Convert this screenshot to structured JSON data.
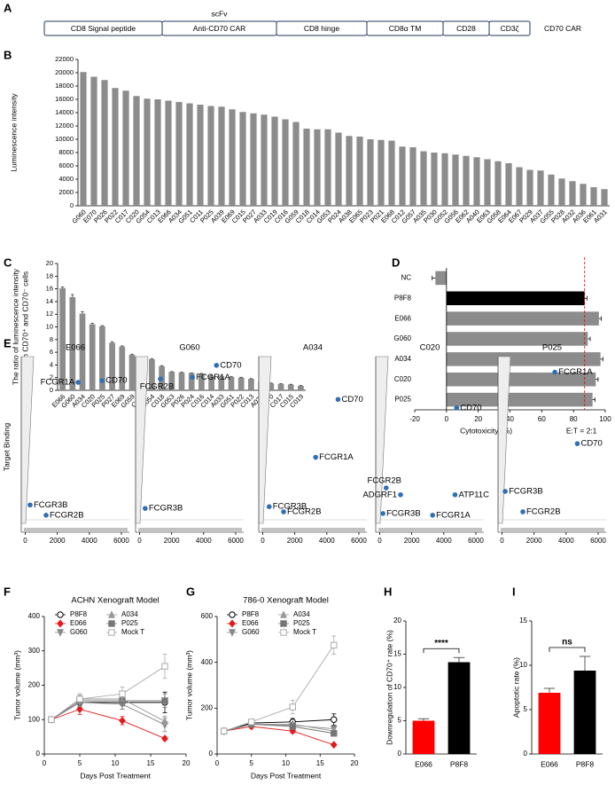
{
  "construct": {
    "panel": "A",
    "name": "CD70 CAR",
    "domains": [
      {
        "label": "CD8 Signal peptide"
      },
      {
        "label": "Anti-CD70 CAR",
        "group": "scFv"
      },
      {
        "label": "CD8 hinge"
      },
      {
        "label": "CD8α TM"
      },
      {
        "label": "CD28"
      },
      {
        "label": "CD3ζ"
      }
    ]
  },
  "chart_data": [
    {
      "panel": "B",
      "type": "bar",
      "ylabel": "Luminescence intensity",
      "color": "#8c8c8c",
      "categories": [
        "G060",
        "E070",
        "P026",
        "P022",
        "C017",
        "C020",
        "G054",
        "C013",
        "E066",
        "A034",
        "G051",
        "C011",
        "P025",
        "A039",
        "E069",
        "C015",
        "P027",
        "A033",
        "C019",
        "C016",
        "G059",
        "C018",
        "C014",
        "G053",
        "P024",
        "A038",
        "E065",
        "P023",
        "P021",
        "E068",
        "C012",
        "G057",
        "A035",
        "P030",
        "G052",
        "G056",
        "E062",
        "A040",
        "E063",
        "G058",
        "E064",
        "E067",
        "P029",
        "A037",
        "G055",
        "P028",
        "A032",
        "A036",
        "E061",
        "A031"
      ],
      "values": [
        20100,
        19400,
        18900,
        17700,
        17300,
        16500,
        16100,
        16000,
        15800,
        15600,
        15400,
        15200,
        15000,
        14900,
        14500,
        14100,
        13900,
        13700,
        13400,
        13000,
        12600,
        11600,
        11500,
        11500,
        11000,
        10500,
        10400,
        10000,
        9900,
        9800,
        8900,
        8800,
        8200,
        8000,
        7900,
        7700,
        7500,
        7300,
        7000,
        6700,
        6400,
        5800,
        5400,
        5300,
        4700,
        4100,
        3700,
        3300,
        2800,
        2500
      ],
      "ylim": [
        0,
        22000
      ],
      "yticks": [
        0,
        2000,
        4000,
        6000,
        8000,
        10000,
        12000,
        14000,
        16000,
        18000,
        20000,
        22000
      ]
    },
    {
      "panel": "C",
      "type": "bar",
      "ylabel": [
        "The ratio of luminescence intensity",
        "between CD70⁺ and CD70⁻ cells"
      ],
      "color": "#8c8c8c",
      "categories": [
        "E066",
        "G060",
        "A034",
        "C020",
        "P025",
        "P027",
        "E069",
        "G059",
        "C011",
        "G054",
        "C018",
        "G053",
        "P026",
        "P024",
        "C016",
        "C014",
        "A033",
        "G051",
        "P022",
        "C013",
        "A039",
        "E070",
        "C017",
        "C015",
        "C019"
      ],
      "values": [
        16.1,
        14.7,
        12.1,
        10.4,
        10.1,
        7.5,
        6.9,
        5.6,
        5.0,
        4.9,
        3.8,
        2.9,
        2.8,
        2.7,
        2.6,
        2.3,
        2.2,
        2.1,
        2.0,
        1.8,
        1.4,
        1.1,
        1.0,
        0.9,
        0.7
      ],
      "errors": [
        0.2,
        0.4,
        0.3,
        0.15,
        0.1,
        0.15,
        0.1,
        0.1,
        0.1,
        0.1,
        0.1,
        0.05,
        0.05,
        0.05,
        0.05,
        0.05,
        0.05,
        0.05,
        0.05,
        0.05,
        0.05,
        0.05,
        0.05,
        0.05,
        0.05
      ],
      "ylim": [
        0,
        20
      ],
      "yticks": [
        0,
        2,
        4,
        6,
        8,
        10,
        12,
        14,
        16,
        18,
        20
      ]
    },
    {
      "panel": "D",
      "type": "hbar",
      "xlabel": "Cytotoxicity (%)",
      "note": "E:T = 2:1",
      "categories": [
        "NC",
        "P8F8",
        "E066",
        "G060",
        "A034",
        "C020",
        "P025"
      ],
      "values": [
        -7,
        87,
        96,
        89,
        97,
        94,
        92
      ],
      "errors": [
        2,
        1.5,
        1.5,
        1.5,
        1.5,
        1.5,
        1.5
      ],
      "colors": [
        "#8c8c8c",
        "#000000",
        "#8c8c8c",
        "#8c8c8c",
        "#8c8c8c",
        "#8c8c8c",
        "#8c8c8c"
      ],
      "ref_line": 87,
      "ref_color": "#e00000",
      "xlim": [
        -20,
        100
      ],
      "xticks": [
        -20,
        0,
        20,
        40,
        60,
        80,
        100
      ]
    },
    {
      "panel": "E",
      "type": "scatter_grid",
      "ylabel": "Target Binding",
      "color": "#2f6fb5",
      "xlim": [
        -250,
        6500
      ],
      "xticks": [
        0,
        2000,
        4000,
        6000
      ],
      "ylim": [
        0,
        100
      ],
      "subplots": [
        {
          "title": "E066",
          "labels": [
            "FCGR1A",
            "CD70",
            "FCGR3B",
            "FCGR2B"
          ],
          "x": [
            3300,
            4800,
            300,
            1300
          ],
          "y": [
            88,
            89,
            16,
            10
          ]
        },
        {
          "title": "G060",
          "labels": [
            "CD70",
            "FCGR1A",
            "FCGR2B",
            "FCGR3B"
          ],
          "x": [
            4800,
            3300,
            1300,
            350
          ],
          "y": [
            98,
            91,
            90,
            14
          ]
        },
        {
          "title": "A034",
          "labels": [
            "CD70",
            "FCGR1A",
            "FCGR3B",
            "FCGR2B"
          ],
          "x": [
            4700,
            3300,
            400,
            1300
          ],
          "y": [
            78,
            44,
            15,
            12
          ]
        },
        {
          "title": "C020",
          "labels": [
            "CD70",
            "FCGR2B",
            "ADGRF1",
            "ATP11C",
            "FCGR3B",
            "FCGR1A"
          ],
          "x": [
            4800,
            400,
            1300,
            4700,
            200,
            3300
          ],
          "y": [
            73,
            26,
            22,
            22,
            11,
            10
          ]
        },
        {
          "title": "P025",
          "labels": [
            "FCGR1A",
            "CD70",
            "FCGR3B",
            "FCGR2B"
          ],
          "x": [
            3300,
            4700,
            200,
            1300
          ],
          "y": [
            94,
            52,
            24,
            12
          ]
        }
      ]
    },
    {
      "panel": "F",
      "type": "line",
      "title": "ACHN Xenograft Model",
      "xlabel": "Days Post Treatment",
      "ylabel": "Tumor volume (mm³)",
      "x": [
        1,
        5,
        11,
        17
      ],
      "xlim": [
        0,
        20
      ],
      "xticks": [
        0,
        5,
        10,
        15,
        20
      ],
      "ylim": [
        0,
        400
      ],
      "yticks": [
        0,
        100,
        200,
        300,
        400
      ],
      "series": [
        {
          "name": "P8F8",
          "color": "#000000",
          "marker": "circle-open",
          "values": [
            100,
            150,
            150,
            150
          ],
          "errors": [
            5,
            15,
            20,
            30
          ]
        },
        {
          "name": "E066",
          "color": "#e41a1c",
          "marker": "diamond",
          "values": [
            100,
            130,
            97,
            45
          ],
          "errors": [
            5,
            15,
            12,
            5
          ]
        },
        {
          "name": "G060",
          "color": "#888888",
          "marker": "triangle-down",
          "values": [
            100,
            150,
            145,
            85
          ],
          "errors": [
            5,
            12,
            15,
            20
          ]
        },
        {
          "name": "A034",
          "color": "#999999",
          "marker": "triangle",
          "values": [
            100,
            160,
            160,
            95
          ],
          "errors": [
            5,
            15,
            15,
            15
          ]
        },
        {
          "name": "P025",
          "color": "#777777",
          "marker": "square",
          "values": [
            100,
            155,
            155,
            155
          ],
          "errors": [
            5,
            15,
            15,
            20
          ]
        },
        {
          "name": "Mock T",
          "color": "#aaaaaa",
          "marker": "square-open",
          "values": [
            100,
            160,
            175,
            255
          ],
          "errors": [
            5,
            15,
            20,
            35
          ]
        }
      ]
    },
    {
      "panel": "G",
      "type": "line",
      "title": "786-0 Xenograft Model",
      "xlabel": "Days Post Treatment",
      "ylabel": "Tumor volume (mm³)",
      "x": [
        1,
        5,
        11,
        17
      ],
      "xlim": [
        0,
        20
      ],
      "xticks": [
        0,
        5,
        10,
        15,
        20
      ],
      "ylim": [
        0,
        600
      ],
      "yticks": [
        0,
        200,
        400,
        600
      ],
      "series": [
        {
          "name": "P8F8",
          "color": "#000000",
          "marker": "circle-open",
          "values": [
            100,
            135,
            140,
            150
          ],
          "errors": [
            5,
            10,
            15,
            25
          ]
        },
        {
          "name": "E066",
          "color": "#e41a1c",
          "marker": "diamond",
          "values": [
            100,
            120,
            100,
            40
          ],
          "errors": [
            5,
            8,
            8,
            5
          ]
        },
        {
          "name": "G060",
          "color": "#888888",
          "marker": "triangle-down",
          "values": [
            100,
            130,
            125,
            110
          ],
          "errors": [
            5,
            8,
            10,
            10
          ]
        },
        {
          "name": "A034",
          "color": "#999999",
          "marker": "triangle",
          "values": [
            100,
            130,
            130,
            100
          ],
          "errors": [
            5,
            8,
            10,
            10
          ]
        },
        {
          "name": "P025",
          "color": "#777777",
          "marker": "square",
          "values": [
            100,
            130,
            120,
            90
          ],
          "errors": [
            5,
            8,
            10,
            10
          ]
        },
        {
          "name": "Mock T",
          "color": "#aaaaaa",
          "marker": "square-open",
          "values": [
            100,
            140,
            205,
            475
          ],
          "errors": [
            5,
            10,
            30,
            40
          ]
        }
      ]
    },
    {
      "panel": "H",
      "type": "bar",
      "ylabel": "Downregulation of CD70⁺ rate (%)",
      "annotation": "****",
      "categories": [
        "E066",
        "P8F8"
      ],
      "values": [
        5.0,
        13.8
      ],
      "errors": [
        0.3,
        0.7
      ],
      "colors": [
        "#ff0000",
        "#000000"
      ],
      "ylim": [
        0,
        20
      ],
      "yticks": [
        0,
        5,
        10,
        15,
        20
      ]
    },
    {
      "panel": "I",
      "type": "bar",
      "ylabel": "Apoptotic rate (%)",
      "annotation": "ns",
      "categories": [
        "E066",
        "P8F8"
      ],
      "values": [
        6.9,
        9.4
      ],
      "errors": [
        0.5,
        1.6
      ],
      "colors": [
        "#ff0000",
        "#000000"
      ],
      "ylim": [
        0,
        15
      ],
      "yticks": [
        0,
        5,
        10,
        15
      ]
    }
  ]
}
